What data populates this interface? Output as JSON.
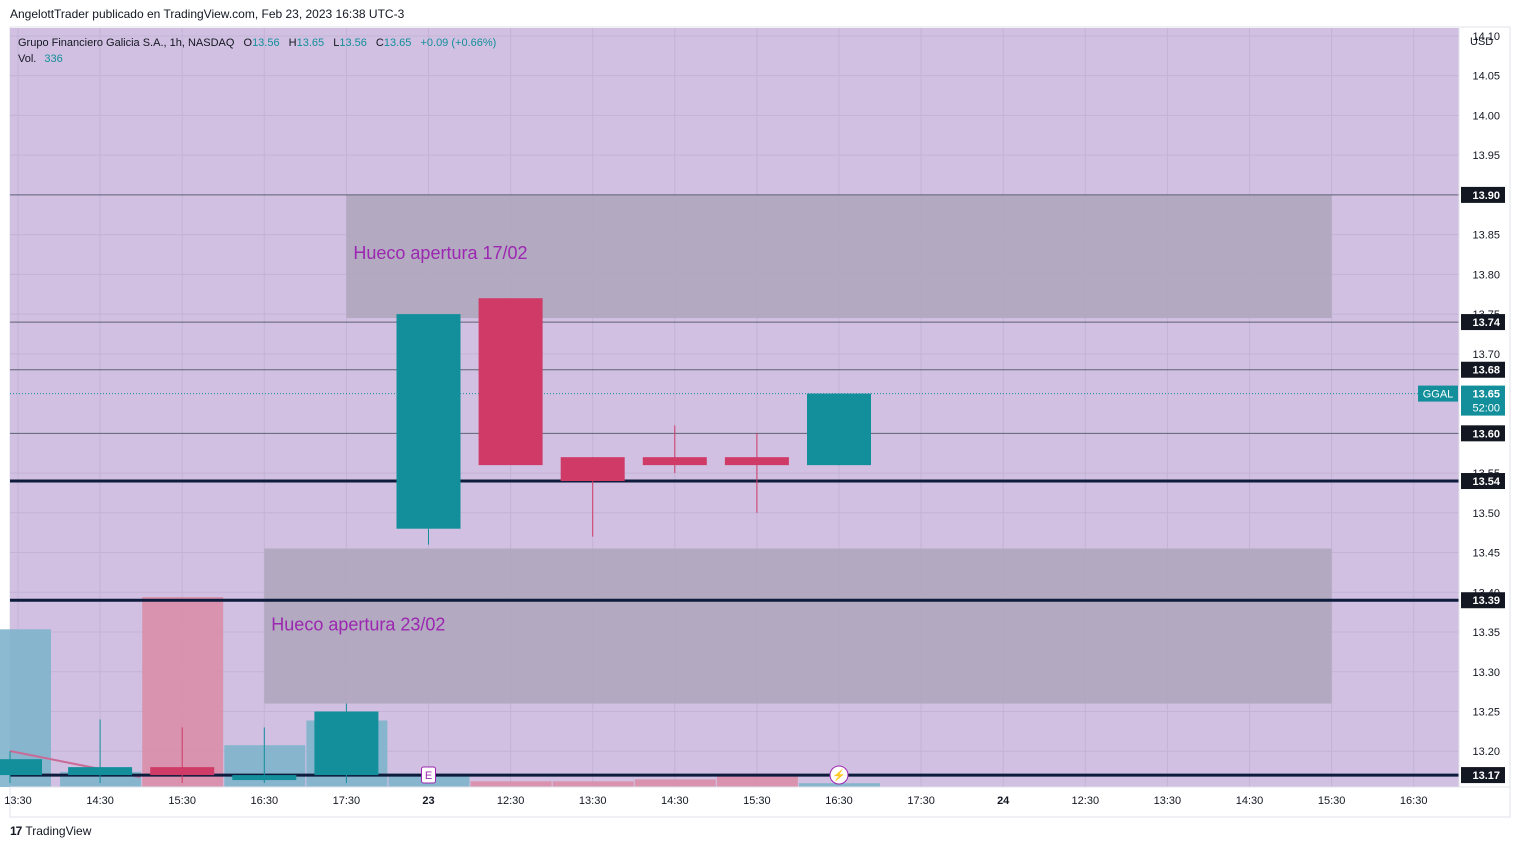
{
  "header": {
    "publisher_line": "AngelottTrader publicado en TradingView.com, Feb 23, 2023 16:38 UTC-3"
  },
  "footer": {
    "logo_text": "TradingView",
    "logo_mark": "17"
  },
  "legend": {
    "symbol_line": "Grupo Financiero Galicia S.A., 1h, NASDAQ",
    "o_label": "O",
    "o_value": "13.56",
    "h_label": "H",
    "h_value": "13.65",
    "l_label": "L",
    "l_value": "13.56",
    "c_label": "C",
    "c_value": "13.65",
    "change": "+0.09 (+0.66%)",
    "vol_label": "Vol.",
    "vol_value": "336"
  },
  "colors": {
    "background": "#d1c0e1",
    "up": "#128f9b",
    "down": "#cf3b66",
    "zone": "#b0a7bd",
    "zone_label": "#9c27b0",
    "level_bold": "#0d1b3d",
    "level_thin": "#5d6275"
  },
  "chart_data": {
    "type": "candlestick",
    "symbol": "GGAL",
    "currency": "USD",
    "ylim": [
      13.155,
      14.11
    ],
    "y_ticks": [
      "13.20",
      "13.25",
      "13.30",
      "13.35",
      "13.40",
      "13.45",
      "13.50",
      "13.55",
      "13.70",
      "13.75",
      "13.80",
      "13.85",
      "13.95",
      "14.00",
      "14.05",
      "14.10"
    ],
    "x_ticks": [
      "13:30",
      "14:30",
      "15:30",
      "16:30",
      "17:30",
      "23",
      "12:30",
      "13:30",
      "14:30",
      "15:30",
      "16:30",
      "17:30",
      "24",
      "12:30",
      "13:30",
      "14:30",
      "15:30",
      "16:30"
    ],
    "candles": [
      {
        "o": 13.17,
        "h": 13.2,
        "l": 13.16,
        "c": 13.19
      },
      {
        "o": 13.17,
        "h": 13.24,
        "l": 13.16,
        "c": 13.18
      },
      {
        "o": 13.18,
        "h": 13.23,
        "l": 13.16,
        "c": 13.17
      },
      {
        "o": 13.17,
        "h": 13.23,
        "l": 13.16,
        "c": 13.17
      },
      {
        "o": 13.17,
        "h": 13.26,
        "l": 13.16,
        "c": 13.25
      },
      {
        "o": 13.48,
        "h": 13.75,
        "l": 13.46,
        "c": 13.75
      },
      {
        "o": 13.77,
        "h": 13.77,
        "l": 13.56,
        "c": 13.56
      },
      {
        "o": 13.57,
        "h": 13.57,
        "l": 13.47,
        "c": 13.54
      },
      {
        "o": 13.57,
        "h": 13.61,
        "l": 13.55,
        "c": 13.56
      },
      {
        "o": 13.57,
        "h": 13.6,
        "l": 13.5,
        "c": 13.56
      },
      {
        "o": 13.56,
        "h": 13.65,
        "l": 13.56,
        "c": 13.65
      }
    ],
    "volume_relative": [
      0.83,
      0.08,
      1.0,
      0.22,
      0.35,
      0.07,
      0.03,
      0.03,
      0.04,
      0.07,
      0.02
    ],
    "volume_direction": [
      "up",
      "up",
      "down",
      "up",
      "up",
      "up",
      "down",
      "down",
      "down",
      "down",
      "up"
    ],
    "horizontal_levels": [
      {
        "value": 13.9,
        "label": "13.90",
        "style": "thin"
      },
      {
        "value": 13.74,
        "label": "13.74",
        "style": "thin"
      },
      {
        "value": 13.68,
        "label": "13.68",
        "style": "thin"
      },
      {
        "value": 13.6,
        "label": "13.60",
        "style": "thin"
      },
      {
        "value": 13.54,
        "label": "13.54",
        "style": "bold"
      },
      {
        "value": 13.39,
        "label": "13.39",
        "style": "bold"
      },
      {
        "value": 13.17,
        "label": "13.17",
        "style": "bold"
      }
    ],
    "zones": [
      {
        "label": "Hueco apertura 17/02",
        "top": 13.9,
        "bottom": 13.745
      },
      {
        "label": "Hueco apertura 23/02",
        "top": 13.455,
        "bottom": 13.26
      }
    ],
    "last_price": {
      "symbol": "GGAL",
      "value": "13.65",
      "countdown": "52:00"
    },
    "event_markers": [
      "E",
      "⚡"
    ]
  }
}
